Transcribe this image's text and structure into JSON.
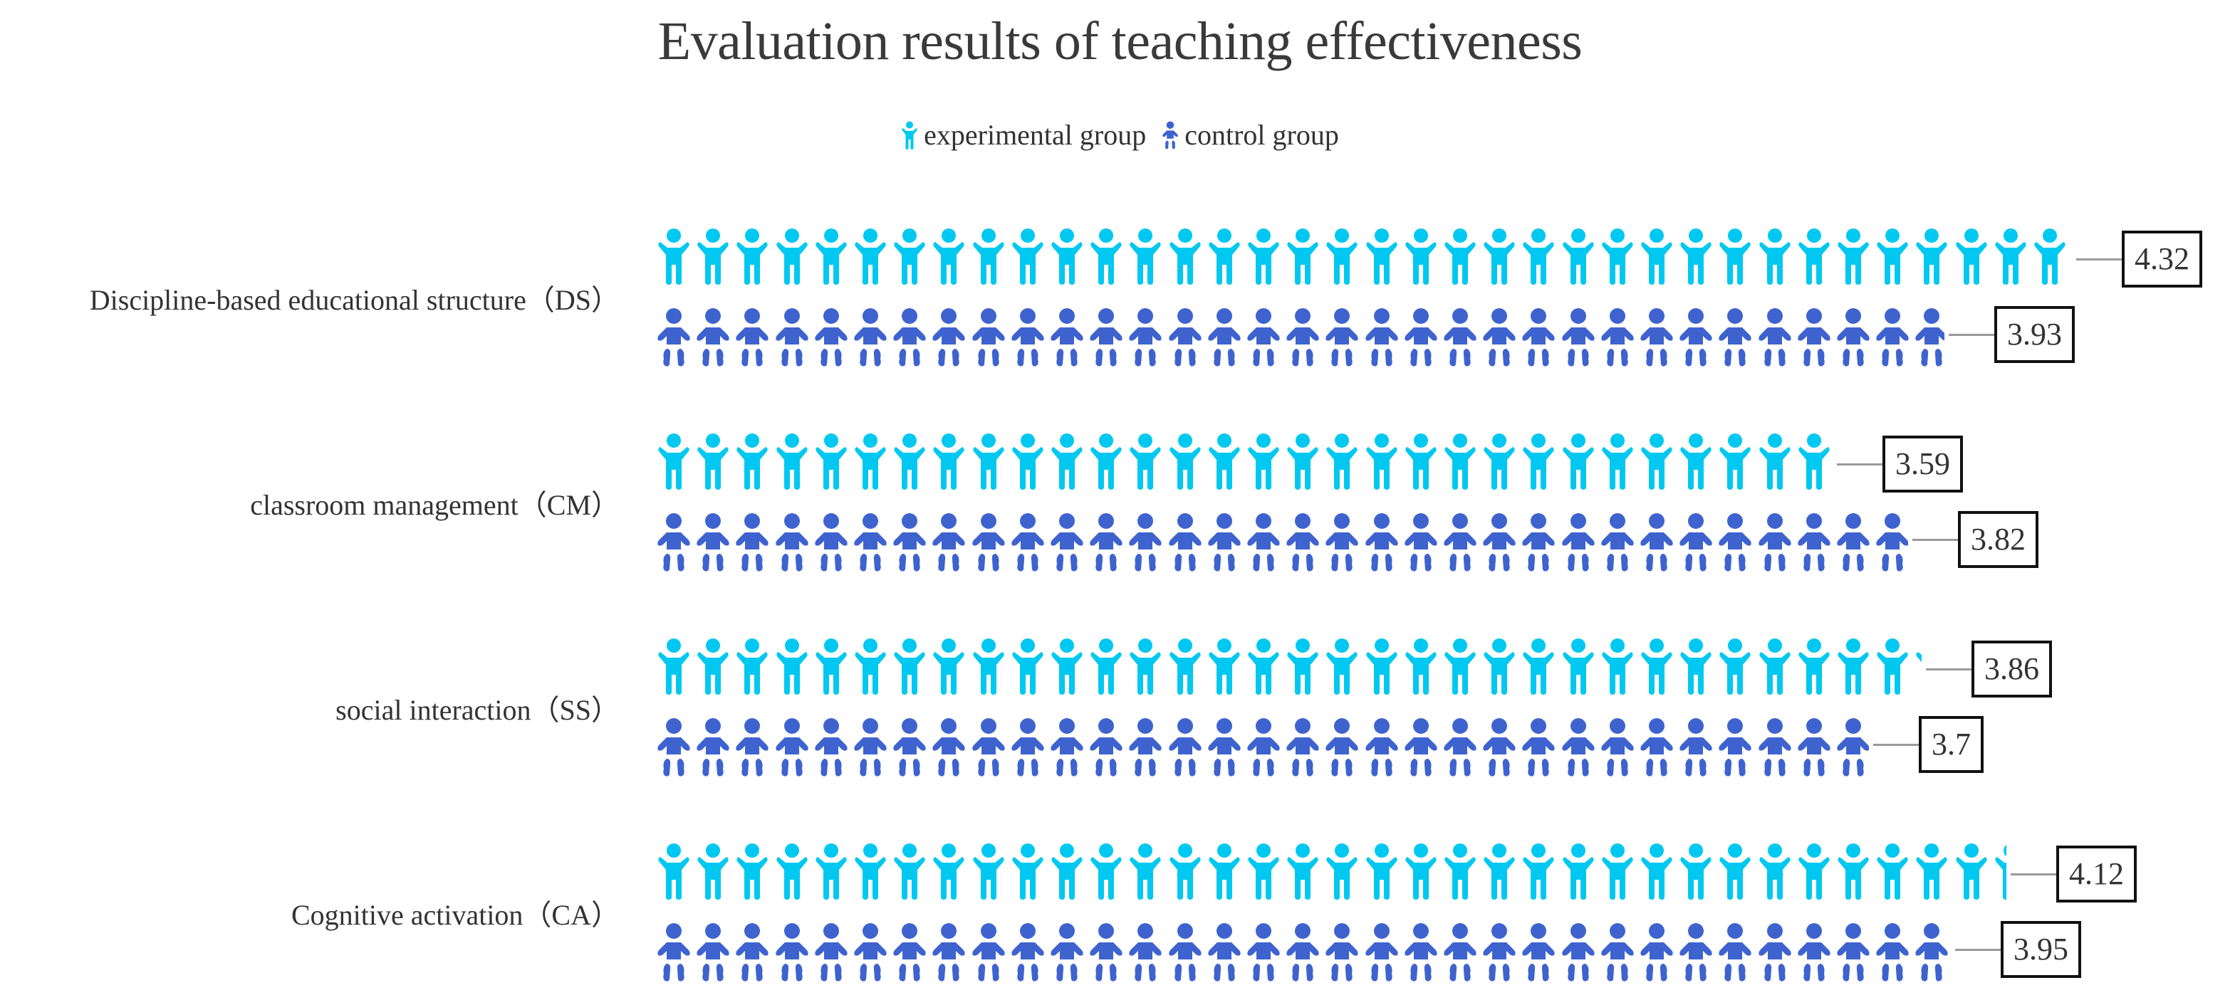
{
  "chart_data": {
    "type": "pictorial-bar",
    "title": "Evaluation results of teaching effectiveness",
    "xlabel": "",
    "ylabel": "",
    "legend_position": "top",
    "grid": false,
    "unit_per_icon": 0.12,
    "categories": [
      "Discipline-based educational structure（DS）",
      "classroom management（CM）",
      "social interaction（SS）",
      "Cognitive activation（CA）"
    ],
    "series": [
      {
        "name": "experimental group",
        "color": "#00C8F0",
        "icon": "child-arms-raised-icon",
        "values": [
          4.32,
          3.59,
          3.86,
          4.12
        ]
      },
      {
        "name": "control group",
        "color": "#3E63CF",
        "icon": "baby-icon",
        "values": [
          3.93,
          3.82,
          3.7,
          3.95
        ]
      }
    ],
    "value_labels": [
      [
        "4.32",
        "3.93"
      ],
      [
        "3.59",
        "3.82"
      ],
      [
        "3.86",
        "3.7"
      ],
      [
        "4.12",
        "3.95"
      ]
    ]
  },
  "title": "Evaluation results of teaching effectiveness",
  "legend": [
    {
      "label": "experimental group",
      "icon": "child-arms-raised-icon",
      "color": "#00C8F0"
    },
    {
      "label": "control group",
      "icon": "baby-icon",
      "color": "#3E63CF"
    }
  ]
}
